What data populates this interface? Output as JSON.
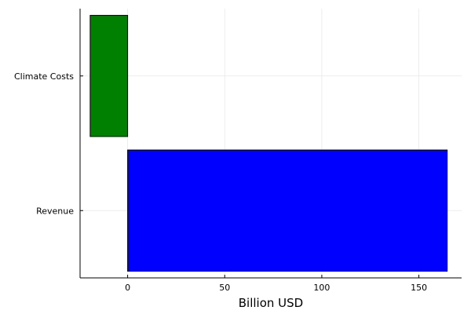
{
  "chart_data": {
    "type": "bar",
    "orientation": "horizontal",
    "categories": [
      "Revenue",
      "Climate Costs"
    ],
    "values": [
      164.6,
      -19.3
    ],
    "colors": [
      "#0000ff",
      "#008000"
    ],
    "xlabel": "Billion USD",
    "ylabel": "",
    "xticks": [
      0,
      50,
      100,
      150
    ],
    "xlim": [
      -24.5,
      172
    ],
    "grid": true,
    "legend": "none"
  }
}
